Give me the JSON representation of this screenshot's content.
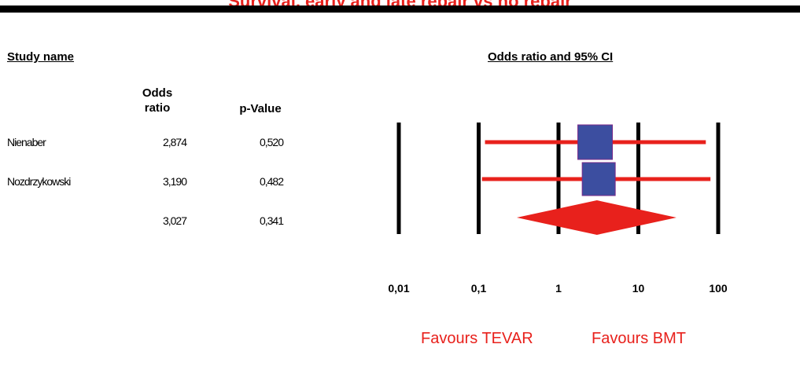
{
  "page_title": "Survival, early and late repair vs no repair",
  "headers": {
    "study_name": "Study name",
    "odds_ratio": "Odds ratio",
    "p_value": "p-Value",
    "plot_title": "Odds ratio and 95% CI"
  },
  "rows": [
    {
      "study": "Nienaber",
      "odds_ratio": "2,874",
      "p_value": "0,520"
    },
    {
      "study": "Nozdrzykowski",
      "odds_ratio": "3,190",
      "p_value": "0,482"
    },
    {
      "study": "",
      "odds_ratio": "3,027",
      "p_value": "0,341"
    }
  ],
  "footer": {
    "favours_left": "Favours TEVAR",
    "favours_right": "Favours BMT"
  },
  "colors": {
    "title": "#e8211c",
    "ci_line": "#e8211c",
    "box": "#3c4ea0",
    "diamond": "#e8211c"
  },
  "chart_data": {
    "type": "scatter",
    "title": "Odds ratio and 95% CI",
    "x_scale": "log",
    "xlim": [
      0.01,
      100
    ],
    "x_ticks": [
      0.01,
      0.1,
      1,
      10,
      100
    ],
    "x_tick_labels": [
      "0,01",
      "0,1",
      "1",
      "10",
      "100"
    ],
    "studies": [
      {
        "name": "Nienaber",
        "odds_ratio": 2.874,
        "ci_low": 0.12,
        "ci_high": 70,
        "p_value": 0.52
      },
      {
        "name": "Nozdrzykowski",
        "odds_ratio": 3.19,
        "ci_low": 0.11,
        "ci_high": 80,
        "p_value": 0.482
      }
    ],
    "summary": {
      "odds_ratio": 3.027,
      "ci_low": 0.3,
      "ci_high": 30,
      "p_value": 0.341
    },
    "annotations": [
      "Favours TEVAR",
      "Favours BMT"
    ]
  }
}
